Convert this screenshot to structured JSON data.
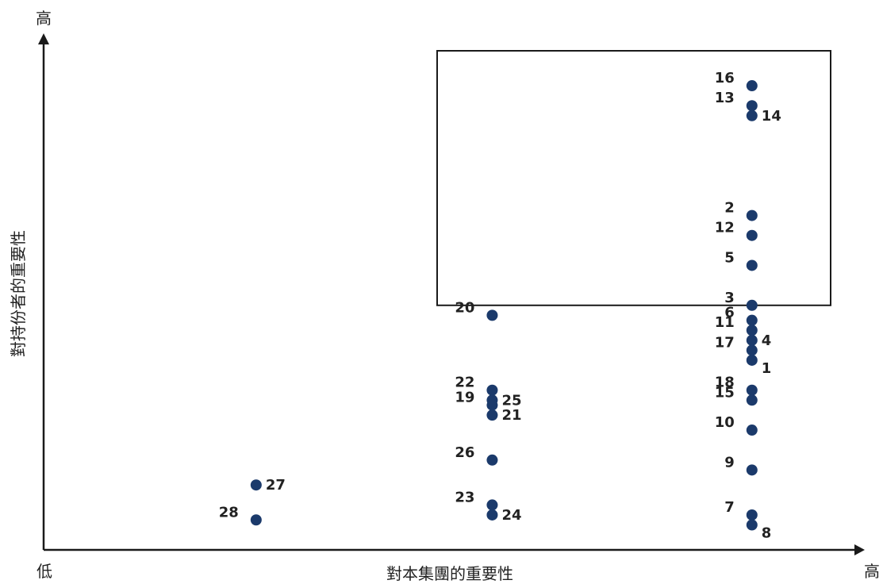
{
  "chart_data": {
    "type": "scatter",
    "title": "",
    "xlabel": "對本集團的重要性",
    "ylabel": "對持份者的重要性",
    "x_low_label": "低",
    "x_high_label": "高",
    "y_high_label": "高",
    "xlim": [
      0,
      100
    ],
    "ylim": [
      0,
      100
    ],
    "grid": false,
    "legend": "none",
    "highlight_region": {
      "x": [
        50,
        100
      ],
      "y": [
        49,
        100
      ]
    },
    "colors": {
      "point": "#1b3a6b",
      "axis": "#1a1a1a",
      "box": "#1a1a1a"
    },
    "points": [
      {
        "label": "16",
        "x": 90,
        "y": 93
      },
      {
        "label": "13",
        "x": 90,
        "y": 89
      },
      {
        "label": "14",
        "x": 90,
        "y": 87
      },
      {
        "label": "2",
        "x": 90,
        "y": 67
      },
      {
        "label": "12",
        "x": 90,
        "y": 63
      },
      {
        "label": "5",
        "x": 90,
        "y": 57
      },
      {
        "label": "3",
        "x": 90,
        "y": 49
      },
      {
        "label": "6",
        "x": 90,
        "y": 46
      },
      {
        "label": "11",
        "x": 90,
        "y": 44
      },
      {
        "label": "4",
        "x": 90,
        "y": 42
      },
      {
        "label": "17",
        "x": 90,
        "y": 40
      },
      {
        "label": "1",
        "x": 90,
        "y": 38
      },
      {
        "label": "18",
        "x": 90,
        "y": 32
      },
      {
        "label": "15",
        "x": 90,
        "y": 30
      },
      {
        "label": "10",
        "x": 90,
        "y": 24
      },
      {
        "label": "9",
        "x": 90,
        "y": 16
      },
      {
        "label": "7",
        "x": 90,
        "y": 7
      },
      {
        "label": "8",
        "x": 90,
        "y": 5
      },
      {
        "label": "20",
        "x": 57,
        "y": 47
      },
      {
        "label": "22",
        "x": 57,
        "y": 32
      },
      {
        "label": "25",
        "x": 57,
        "y": 30
      },
      {
        "label": "19",
        "x": 57,
        "y": 29
      },
      {
        "label": "21",
        "x": 57,
        "y": 27
      },
      {
        "label": "26",
        "x": 57,
        "y": 18
      },
      {
        "label": "23",
        "x": 57,
        "y": 9
      },
      {
        "label": "24",
        "x": 57,
        "y": 7
      },
      {
        "label": "27",
        "x": 27,
        "y": 13
      },
      {
        "label": "28",
        "x": 27,
        "y": 6
      }
    ]
  }
}
